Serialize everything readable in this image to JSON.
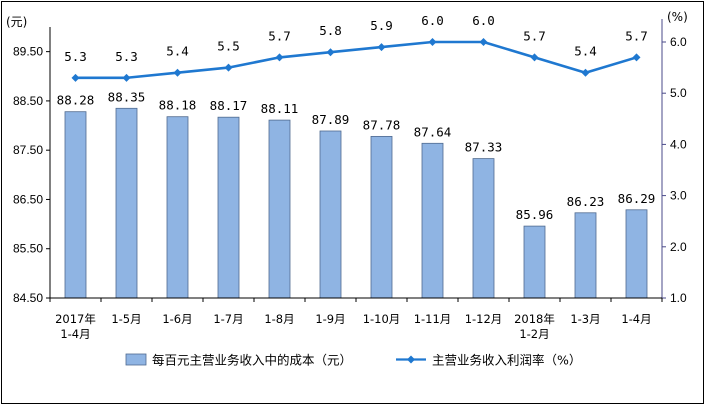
{
  "chart_data": {
    "type": "bar+line",
    "categories": [
      [
        "2017年",
        "1-4月"
      ],
      [
        "1-5月"
      ],
      [
        "1-6月"
      ],
      [
        "1-7月"
      ],
      [
        "1-8月"
      ],
      [
        "1-9月"
      ],
      [
        "1-10月"
      ],
      [
        "1-11月"
      ],
      [
        "1-12月"
      ],
      [
        "2018年",
        "1-2月"
      ],
      [
        "1-3月"
      ],
      [
        "1-4月"
      ]
    ],
    "bar_series": {
      "name": "每百元主营业务收入中的成本（元）",
      "values": [
        88.28,
        88.35,
        88.18,
        88.17,
        88.11,
        87.89,
        87.78,
        87.64,
        87.33,
        85.96,
        86.23,
        86.29
      ],
      "labels": [
        "88.28",
        "88.35",
        "88.18",
        "88.17",
        "88.11",
        "87.89",
        "87.78",
        "87.64",
        "87.33",
        "85.96",
        "86.23",
        "86.29"
      ],
      "color": "#8FB4E3"
    },
    "line_series": {
      "name": "主营业务收入利润率（%）",
      "values": [
        5.3,
        5.3,
        5.4,
        5.5,
        5.7,
        5.8,
        5.9,
        6.0,
        6.0,
        5.7,
        5.4,
        5.7
      ],
      "labels": [
        "5.3",
        "5.3",
        "5.4",
        "5.5",
        "5.7",
        "5.8",
        "5.9",
        "6.0",
        "6.0",
        "5.7",
        "5.4",
        "5.7"
      ],
      "color": "#1F78D0"
    },
    "y_left": {
      "unit": "(元)",
      "ylim": [
        84.5,
        90.0
      ],
      "ticks": [
        84.5,
        85.5,
        86.5,
        87.5,
        88.5,
        89.5
      ],
      "tick_labels": [
        "84.50",
        "85.50",
        "86.50",
        "87.50",
        "88.50",
        "89.50"
      ]
    },
    "y_right": {
      "unit": "(%)",
      "ylim": [
        1.0,
        6.0
      ],
      "ticks": [
        1,
        2,
        3,
        4,
        5,
        6
      ],
      "tick_labels": [
        "1.0",
        "2.0",
        "3.0",
        "4.0",
        "5.0",
        "6.0"
      ],
      "color": "#4A4A8A"
    },
    "legend_position": "bottom",
    "grid": false
  }
}
